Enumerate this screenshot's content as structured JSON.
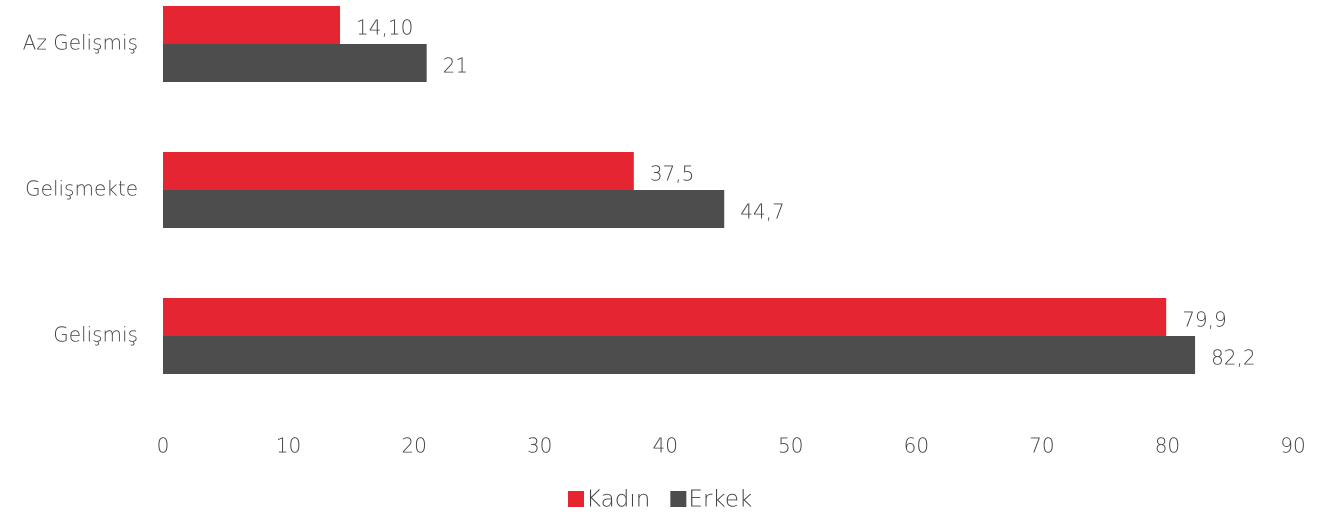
{
  "chart_data": {
    "type": "hbar",
    "categories": [
      "Az Gelişmiş",
      "Gelişmekte",
      "Gelişmiş"
    ],
    "series": [
      {
        "name": "Kadın",
        "color": "#e52532",
        "values": [
          14.1,
          37.5,
          79.9
        ],
        "value_labels": [
          "14,10",
          "37,5",
          "79,9"
        ]
      },
      {
        "name": "Erkek",
        "color": "#4d4d4d",
        "values": [
          21,
          44.7,
          82.2
        ],
        "value_labels": [
          "21",
          "44,7",
          "82,2"
        ]
      }
    ],
    "xlim": [
      0,
      90
    ],
    "xticks": [
      0,
      10,
      20,
      30,
      40,
      50,
      60,
      70,
      80,
      90
    ],
    "grid": false,
    "legend": "bottom"
  }
}
